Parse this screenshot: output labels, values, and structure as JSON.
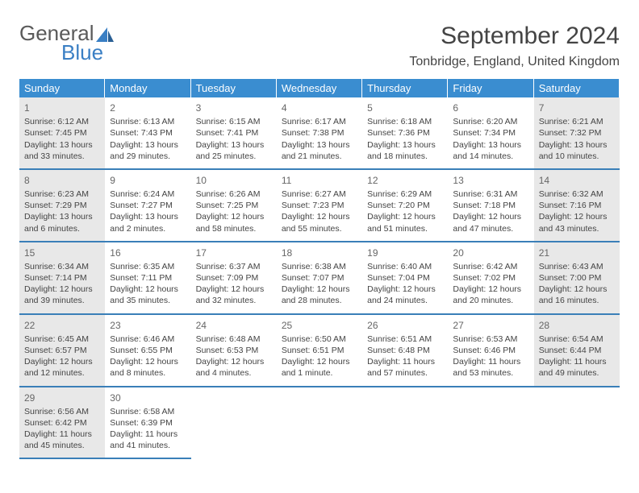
{
  "logo": {
    "part1": "General",
    "part2": "Blue"
  },
  "title": "September 2024",
  "location": "Tonbridge, England, United Kingdom",
  "colors": {
    "header_bg": "#3a8dd0",
    "border": "#3a7fb8",
    "shaded": "#e8e8e8",
    "text": "#444444"
  },
  "day_headers": [
    "Sunday",
    "Monday",
    "Tuesday",
    "Wednesday",
    "Thursday",
    "Friday",
    "Saturday"
  ],
  "days": [
    {
      "n": "1",
      "shaded": true,
      "sr": "Sunrise: 6:12 AM",
      "ss": "Sunset: 7:45 PM",
      "d1": "Daylight: 13 hours",
      "d2": "and 33 minutes."
    },
    {
      "n": "2",
      "shaded": false,
      "sr": "Sunrise: 6:13 AM",
      "ss": "Sunset: 7:43 PM",
      "d1": "Daylight: 13 hours",
      "d2": "and 29 minutes."
    },
    {
      "n": "3",
      "shaded": false,
      "sr": "Sunrise: 6:15 AM",
      "ss": "Sunset: 7:41 PM",
      "d1": "Daylight: 13 hours",
      "d2": "and 25 minutes."
    },
    {
      "n": "4",
      "shaded": false,
      "sr": "Sunrise: 6:17 AM",
      "ss": "Sunset: 7:38 PM",
      "d1": "Daylight: 13 hours",
      "d2": "and 21 minutes."
    },
    {
      "n": "5",
      "shaded": false,
      "sr": "Sunrise: 6:18 AM",
      "ss": "Sunset: 7:36 PM",
      "d1": "Daylight: 13 hours",
      "d2": "and 18 minutes."
    },
    {
      "n": "6",
      "shaded": false,
      "sr": "Sunrise: 6:20 AM",
      "ss": "Sunset: 7:34 PM",
      "d1": "Daylight: 13 hours",
      "d2": "and 14 minutes."
    },
    {
      "n": "7",
      "shaded": true,
      "sr": "Sunrise: 6:21 AM",
      "ss": "Sunset: 7:32 PM",
      "d1": "Daylight: 13 hours",
      "d2": "and 10 minutes."
    },
    {
      "n": "8",
      "shaded": true,
      "sr": "Sunrise: 6:23 AM",
      "ss": "Sunset: 7:29 PM",
      "d1": "Daylight: 13 hours",
      "d2": "and 6 minutes."
    },
    {
      "n": "9",
      "shaded": false,
      "sr": "Sunrise: 6:24 AM",
      "ss": "Sunset: 7:27 PM",
      "d1": "Daylight: 13 hours",
      "d2": "and 2 minutes."
    },
    {
      "n": "10",
      "shaded": false,
      "sr": "Sunrise: 6:26 AM",
      "ss": "Sunset: 7:25 PM",
      "d1": "Daylight: 12 hours",
      "d2": "and 58 minutes."
    },
    {
      "n": "11",
      "shaded": false,
      "sr": "Sunrise: 6:27 AM",
      "ss": "Sunset: 7:23 PM",
      "d1": "Daylight: 12 hours",
      "d2": "and 55 minutes."
    },
    {
      "n": "12",
      "shaded": false,
      "sr": "Sunrise: 6:29 AM",
      "ss": "Sunset: 7:20 PM",
      "d1": "Daylight: 12 hours",
      "d2": "and 51 minutes."
    },
    {
      "n": "13",
      "shaded": false,
      "sr": "Sunrise: 6:31 AM",
      "ss": "Sunset: 7:18 PM",
      "d1": "Daylight: 12 hours",
      "d2": "and 47 minutes."
    },
    {
      "n": "14",
      "shaded": true,
      "sr": "Sunrise: 6:32 AM",
      "ss": "Sunset: 7:16 PM",
      "d1": "Daylight: 12 hours",
      "d2": "and 43 minutes."
    },
    {
      "n": "15",
      "shaded": true,
      "sr": "Sunrise: 6:34 AM",
      "ss": "Sunset: 7:14 PM",
      "d1": "Daylight: 12 hours",
      "d2": "and 39 minutes."
    },
    {
      "n": "16",
      "shaded": false,
      "sr": "Sunrise: 6:35 AM",
      "ss": "Sunset: 7:11 PM",
      "d1": "Daylight: 12 hours",
      "d2": "and 35 minutes."
    },
    {
      "n": "17",
      "shaded": false,
      "sr": "Sunrise: 6:37 AM",
      "ss": "Sunset: 7:09 PM",
      "d1": "Daylight: 12 hours",
      "d2": "and 32 minutes."
    },
    {
      "n": "18",
      "shaded": false,
      "sr": "Sunrise: 6:38 AM",
      "ss": "Sunset: 7:07 PM",
      "d1": "Daylight: 12 hours",
      "d2": "and 28 minutes."
    },
    {
      "n": "19",
      "shaded": false,
      "sr": "Sunrise: 6:40 AM",
      "ss": "Sunset: 7:04 PM",
      "d1": "Daylight: 12 hours",
      "d2": "and 24 minutes."
    },
    {
      "n": "20",
      "shaded": false,
      "sr": "Sunrise: 6:42 AM",
      "ss": "Sunset: 7:02 PM",
      "d1": "Daylight: 12 hours",
      "d2": "and 20 minutes."
    },
    {
      "n": "21",
      "shaded": true,
      "sr": "Sunrise: 6:43 AM",
      "ss": "Sunset: 7:00 PM",
      "d1": "Daylight: 12 hours",
      "d2": "and 16 minutes."
    },
    {
      "n": "22",
      "shaded": true,
      "sr": "Sunrise: 6:45 AM",
      "ss": "Sunset: 6:57 PM",
      "d1": "Daylight: 12 hours",
      "d2": "and 12 minutes."
    },
    {
      "n": "23",
      "shaded": false,
      "sr": "Sunrise: 6:46 AM",
      "ss": "Sunset: 6:55 PM",
      "d1": "Daylight: 12 hours",
      "d2": "and 8 minutes."
    },
    {
      "n": "24",
      "shaded": false,
      "sr": "Sunrise: 6:48 AM",
      "ss": "Sunset: 6:53 PM",
      "d1": "Daylight: 12 hours",
      "d2": "and 4 minutes."
    },
    {
      "n": "25",
      "shaded": false,
      "sr": "Sunrise: 6:50 AM",
      "ss": "Sunset: 6:51 PM",
      "d1": "Daylight: 12 hours",
      "d2": "and 1 minute."
    },
    {
      "n": "26",
      "shaded": false,
      "sr": "Sunrise: 6:51 AM",
      "ss": "Sunset: 6:48 PM",
      "d1": "Daylight: 11 hours",
      "d2": "and 57 minutes."
    },
    {
      "n": "27",
      "shaded": false,
      "sr": "Sunrise: 6:53 AM",
      "ss": "Sunset: 6:46 PM",
      "d1": "Daylight: 11 hours",
      "d2": "and 53 minutes."
    },
    {
      "n": "28",
      "shaded": true,
      "sr": "Sunrise: 6:54 AM",
      "ss": "Sunset: 6:44 PM",
      "d1": "Daylight: 11 hours",
      "d2": "and 49 minutes."
    },
    {
      "n": "29",
      "shaded": true,
      "sr": "Sunrise: 6:56 AM",
      "ss": "Sunset: 6:42 PM",
      "d1": "Daylight: 11 hours",
      "d2": "and 45 minutes."
    },
    {
      "n": "30",
      "shaded": false,
      "sr": "Sunrise: 6:58 AM",
      "ss": "Sunset: 6:39 PM",
      "d1": "Daylight: 11 hours",
      "d2": "and 41 minutes."
    }
  ]
}
